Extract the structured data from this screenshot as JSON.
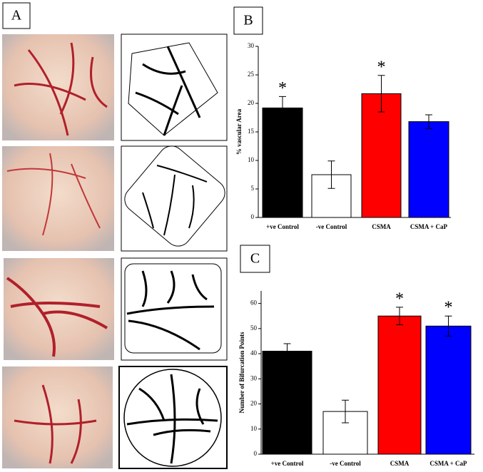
{
  "panels": [
    "A",
    "B",
    "C"
  ],
  "chart_data": [
    {
      "type": "bar",
      "ylabel": "% vascular Area",
      "categories": [
        "+ve Control",
        "-ve Control",
        "CSMA",
        "CSMA + CaP"
      ],
      "values": [
        19.2,
        7.5,
        21.7,
        16.8
      ],
      "errors": [
        2.0,
        2.4,
        3.2,
        1.2
      ],
      "colors": [
        "#000000",
        "#ffffff",
        "#ff0000",
        "#0000ff"
      ],
      "markers": [
        "*",
        null,
        "*",
        null
      ],
      "ylim": [
        0,
        30
      ],
      "yticks": [
        0,
        5,
        10,
        15,
        20,
        25,
        30
      ]
    },
    {
      "type": "bar",
      "ylabel": "Number of Bifurcation Points",
      "categories": [
        "+ve Control",
        "-ve Control",
        "CSMA",
        "CSMA + CaP"
      ],
      "values": [
        41,
        17,
        55,
        51
      ],
      "errors": [
        3,
        4.5,
        3.5,
        4
      ],
      "colors": [
        "#000000",
        "#ffffff",
        "#ff0000",
        "#0000ff"
      ],
      "markers": [
        null,
        null,
        "*",
        "*"
      ],
      "ylim": [
        0,
        65
      ],
      "yticks": [
        0,
        10,
        20,
        30,
        40,
        50,
        60
      ]
    }
  ]
}
